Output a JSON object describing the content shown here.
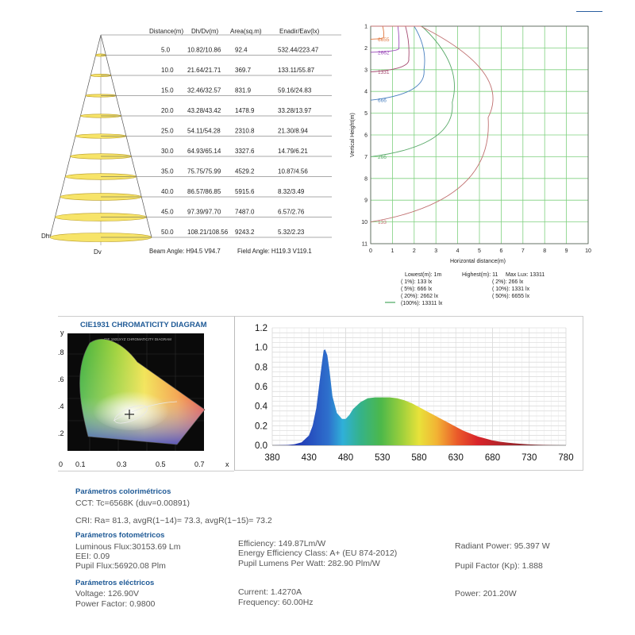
{
  "cone": {
    "headers": [
      "Distance(m)",
      "Dh/Dv(m)",
      "Area(sq.m)",
      "Enadir/Eav(lx)"
    ],
    "rows": [
      {
        "distance": "5.0",
        "dhdv": "10.82/10.86",
        "area": "92.4",
        "e": "532.44/223.47"
      },
      {
        "distance": "10.0",
        "dhdv": "21.64/21.71",
        "area": "369.7",
        "e": "133.11/55.87"
      },
      {
        "distance": "15.0",
        "dhdv": "32.46/32.57",
        "area": "831.9",
        "e": "59.16/24.83"
      },
      {
        "distance": "20.0",
        "dhdv": "43.28/43.42",
        "area": "1478.9",
        "e": "33.28/13.97"
      },
      {
        "distance": "25.0",
        "dhdv": "54.11/54.28",
        "area": "2310.8",
        "e": "21.30/8.94"
      },
      {
        "distance": "30.0",
        "dhdv": "64.93/65.14",
        "area": "3327.6",
        "e": "14.79/6.21"
      },
      {
        "distance": "35.0",
        "dhdv": "75.75/75.99",
        "area": "4529.2",
        "e": "10.87/4.56"
      },
      {
        "distance": "40.0",
        "dhdv": "86.57/86.85",
        "area": "5915.6",
        "e": "8.32/3.49"
      },
      {
        "distance": "45.0",
        "dhdv": "97.39/97.70",
        "area": "7487.0",
        "e": "6.57/2.76"
      },
      {
        "distance": "50.0",
        "dhdv": "108.21/108.56",
        "area": "9243.2",
        "e": "5.32/2.23"
      }
    ],
    "dh_label": "Dh",
    "dv_label": "Dv",
    "beam_angle": "Beam Angle: H94.5 V94.7",
    "field_angle": "Field Angle: H119.3 V119.1",
    "fill_color": "#f7e469",
    "edge_color": "#b89a20"
  },
  "chart_data": [
    {
      "type": "line",
      "name": "isolux",
      "xlabel": "Horizontal distance(m)",
      "ylabel": "Vertical Height(m)",
      "xlim": [
        0,
        10
      ],
      "ylim": [
        1,
        11
      ],
      "y_inverted": true,
      "grid": true,
      "x_ticks": [
        "0",
        "1",
        "2",
        "3",
        "4",
        "5",
        "6",
        "7",
        "8",
        "9",
        "10"
      ],
      "y_ticks": [
        "1",
        "2",
        "3",
        "4",
        "5",
        "6",
        "7",
        "8",
        "9",
        "10",
        "11"
      ],
      "series": [
        {
          "label": "6655",
          "color": "#e07840",
          "extent": [
            [
              0,
              1.0
            ],
            [
              0.55,
              1.0
            ],
            [
              0.6,
              1.5
            ],
            [
              0,
              1.6
            ]
          ]
        },
        {
          "label": "2662",
          "color": "#9a4ab8",
          "extent": [
            [
              0,
              1.0
            ],
            [
              1.25,
              1.0
            ],
            [
              1.3,
              2.0
            ],
            [
              0,
              2.2
            ]
          ]
        },
        {
          "label": "1331",
          "color": "#a54a70",
          "extent": [
            [
              0,
              1.0
            ],
            [
              1.6,
              1.0
            ],
            [
              1.75,
              2.5
            ],
            [
              0,
              3.1
            ]
          ]
        },
        {
          "label": "666",
          "color": "#4a80c0",
          "extent": [
            [
              0,
              1.0
            ],
            [
              2.0,
              1.0
            ],
            [
              2.45,
              3.0
            ],
            [
              0,
              4.4
            ]
          ]
        },
        {
          "label": "266",
          "color": "#5aaa6a",
          "extent": [
            [
              0,
              1.0
            ],
            [
              2.35,
              1.0
            ],
            [
              3.75,
              4.5
            ],
            [
              0,
              7.0
            ]
          ]
        },
        {
          "label": "133",
          "color": "#c07070",
          "extent": [
            [
              0,
              1.0
            ],
            [
              2.3,
              1.0
            ],
            [
              5.4,
              5.2
            ],
            [
              0,
              10.0
            ]
          ]
        }
      ],
      "legend": {
        "lowest": "Lowest(m):  1m",
        "highest": "Highest(m): 11",
        "max_lux": "Max Lux: 13311",
        "rows": [
          [
            "( 1%):   133 lx",
            "( 2%):  266 lx"
          ],
          [
            "( 5%):   666 lx",
            "( 10%):  1331 lx"
          ],
          [
            "( 20%):  2662 lx",
            "( 50%):  6655 lx"
          ],
          [
            "(100%): 13311 lx",
            ""
          ]
        ],
        "marker_color": "#4aa860"
      }
    },
    {
      "type": "area",
      "name": "spectrum",
      "x_ticks": [
        "380",
        "430",
        "480",
        "530",
        "580",
        "630",
        "680",
        "730",
        "780"
      ],
      "y_ticks": [
        "0.0",
        "0.2",
        "0.4",
        "0.6",
        "0.8",
        "1.0",
        "1.2"
      ],
      "xlim": [
        380,
        780
      ],
      "ylim": [
        0,
        1.2
      ],
      "grid": true,
      "x": [
        380,
        400,
        410,
        420,
        430,
        435,
        440,
        445,
        448,
        450,
        452,
        455,
        458,
        462,
        468,
        475,
        480,
        485,
        490,
        500,
        510,
        520,
        530,
        540,
        550,
        560,
        570,
        580,
        590,
        600,
        610,
        620,
        630,
        640,
        650,
        660,
        670,
        680,
        690,
        700,
        710,
        720,
        730,
        740,
        750,
        760,
        770,
        780
      ],
      "y": [
        0.0,
        0.003,
        0.01,
        0.03,
        0.1,
        0.2,
        0.38,
        0.68,
        0.86,
        0.97,
        0.98,
        0.92,
        0.76,
        0.5,
        0.33,
        0.27,
        0.27,
        0.31,
        0.37,
        0.44,
        0.48,
        0.49,
        0.49,
        0.49,
        0.48,
        0.46,
        0.43,
        0.39,
        0.35,
        0.31,
        0.27,
        0.23,
        0.19,
        0.15,
        0.12,
        0.09,
        0.07,
        0.05,
        0.037,
        0.027,
        0.02,
        0.014,
        0.009,
        0.006,
        0.004,
        0.002,
        0.001,
        0.0
      ]
    }
  ],
  "cie": {
    "title": "CIE1931 CHROMATICITY DIAGRAM",
    "inner_title": "CIE 1931XYZ CHROMATICITY DIAGRAM",
    "y_label": "y",
    "x_label": "x",
    "y_ticks": [
      ".8",
      ".6",
      ".4",
      ".2"
    ],
    "x_ticks": [
      "0",
      "0.1",
      "0.3",
      "0.5",
      "0.7"
    ],
    "title_color": "#1f5a96"
  },
  "params": {
    "colorimetric_title": "Parámetros colorimétricos",
    "cct": "CCT: Tc=6568K (duv=0.00891)",
    "cri": "CRI: Ra= 81.3, avgR(1~14)= 73.3, avgR(1~15)= 73.2",
    "photometric_title": "Parámetros fotométricos",
    "luminous_flux": "Luminous Flux:30153.69 Lm",
    "eei": "EEI: 0.09",
    "pupil_flux": "Pupil Flux:56920.08 Plm",
    "efficiency": "Efficiency:  149.87Lm/W",
    "ee_class": "Energy Efficiency Class: A+ (EU 874-2012)",
    "pupil_lumens": "Pupil Lumens Per Watt: 282.90 Plm/W",
    "radiant_power": "Radiant Power: 95.397 W",
    "pupil_factor": "Pupil Factor (Kp): 1.888",
    "electrical_title": "Parámetros eléctricos",
    "voltage": "Voltage: 126.90V",
    "power_factor": "Power Factor: 0.9800",
    "current": "Current: 1.4270A",
    "frequency": "Frequency: 60.00Hz",
    "power": "Power: 201.20W"
  }
}
